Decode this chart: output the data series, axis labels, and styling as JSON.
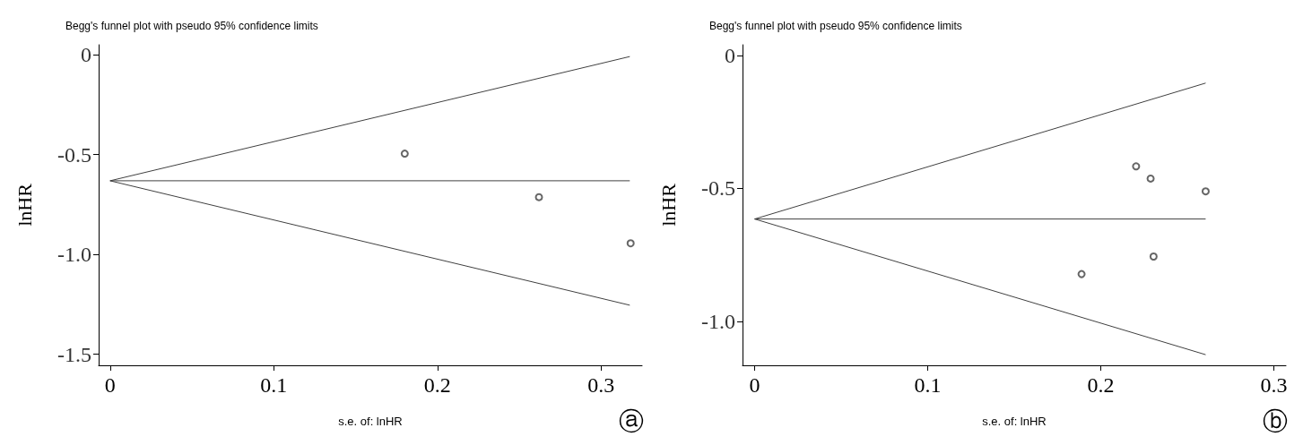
{
  "chart_data": [
    {
      "type": "scatter",
      "title": "Begg's funnel plot with pseudo 95% confidence limits",
      "xlabel": "s.e. of: lnHR",
      "ylabel": "lnHR",
      "annotations": [
        "ⓐ"
      ],
      "xlim": [
        -0.007,
        0.325
      ],
      "ylim": [
        -1.555,
        0.05
      ],
      "xticks": [
        0,
        0.1,
        0.2,
        0.3
      ],
      "yticks": [
        0,
        -0.5,
        {
          "value": -1,
          "label": "-1.0"
        },
        -1.5
      ],
      "grid": false,
      "series": [
        {
          "type": "scatter",
          "marker": "circle",
          "color": "#404040",
          "x": [
            0.18,
            0.262,
            0.318
          ],
          "values": [
            -0.495,
            -0.713,
            -0.944
          ]
        },
        {
          "type": "line",
          "color": "#404040",
          "x": [
            0,
            0.3175
          ],
          "values": [
            -0.631,
            -0.009
          ]
        },
        {
          "type": "line",
          "color": "#404040",
          "x": [
            0,
            0.3175
          ],
          "values": [
            -0.631,
            -0.631
          ]
        },
        {
          "type": "line",
          "color": "#404040",
          "x": [
            0,
            0.3175
          ],
          "values": [
            -0.631,
            -1.254
          ]
        }
      ]
    },
    {
      "type": "scatter",
      "title": "Begg's funnel plot with pseudo 95% confidence limits",
      "xlabel": "s.e. of: lnHR",
      "ylabel": "lnHR",
      "annotations": [
        "ⓑ"
      ],
      "xlim": [
        -0.007,
        0.307
      ],
      "ylim": [
        -1.165,
        0.04
      ],
      "xticks": [
        0,
        0.1,
        0.2,
        0.3
      ],
      "yticks": [
        0,
        -0.5,
        {
          "value": -1,
          "label": "-1.0"
        }
      ],
      "grid": false,
      "series": [
        {
          "type": "scatter",
          "marker": "circle",
          "color": "#404040",
          "x": [
            0.2204,
            0.2288,
            0.2606,
            0.2305,
            0.1889
          ],
          "values": [
            -0.417,
            -0.463,
            -0.511,
            -0.756,
            -0.822
          ]
        },
        {
          "type": "line",
          "color": "#404040",
          "x": [
            0,
            0.2606
          ],
          "values": [
            -0.615,
            -0.104
          ]
        },
        {
          "type": "line",
          "color": "#404040",
          "x": [
            0,
            0.2606
          ],
          "values": [
            -0.615,
            -0.615
          ]
        },
        {
          "type": "line",
          "color": "#404040",
          "x": [
            0,
            0.2606
          ],
          "values": [
            -0.615,
            -1.125
          ]
        }
      ]
    }
  ]
}
